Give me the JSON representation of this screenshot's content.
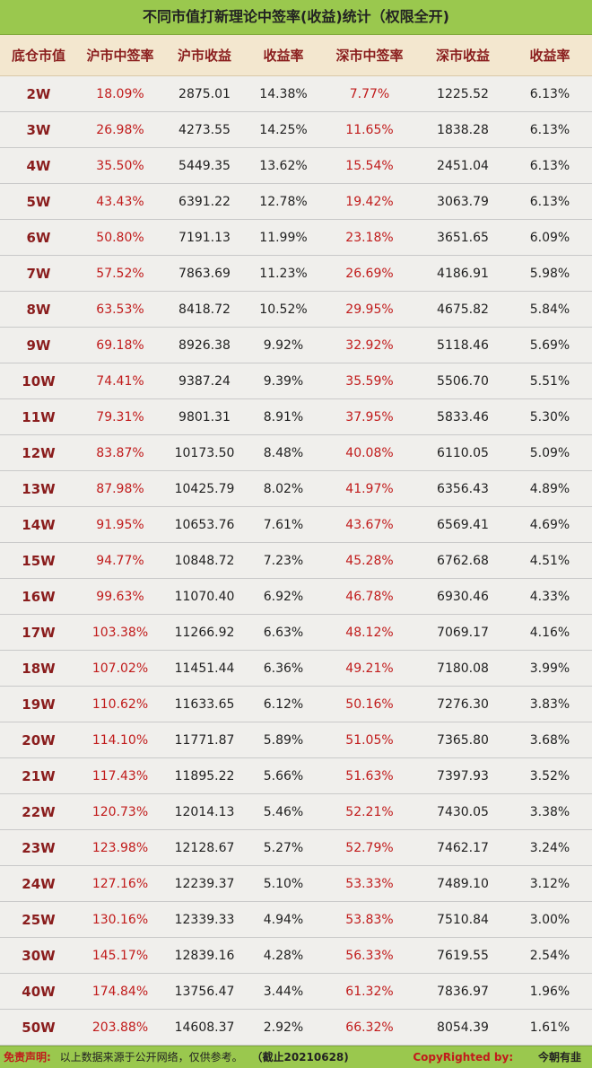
{
  "title": "不同市值打新理论中签率(收益)统计（权限全开)",
  "headers": [
    "底仓市值",
    "沪市中签率",
    "沪市收益",
    "收益率",
    "深市中签率",
    "深市收益",
    "收益率"
  ],
  "rows": [
    [
      "2W",
      "18.09%",
      "2875.01",
      "14.38%",
      "7.77%",
      "1225.52",
      "6.13%"
    ],
    [
      "3W",
      "26.98%",
      "4273.55",
      "14.25%",
      "11.65%",
      "1838.28",
      "6.13%"
    ],
    [
      "4W",
      "35.50%",
      "5449.35",
      "13.62%",
      "15.54%",
      "2451.04",
      "6.13%"
    ],
    [
      "5W",
      "43.43%",
      "6391.22",
      "12.78%",
      "19.42%",
      "3063.79",
      "6.13%"
    ],
    [
      "6W",
      "50.80%",
      "7191.13",
      "11.99%",
      "23.18%",
      "3651.65",
      "6.09%"
    ],
    [
      "7W",
      "57.52%",
      "7863.69",
      "11.23%",
      "26.69%",
      "4186.91",
      "5.98%"
    ],
    [
      "8W",
      "63.53%",
      "8418.72",
      "10.52%",
      "29.95%",
      "4675.82",
      "5.84%"
    ],
    [
      "9W",
      "69.18%",
      "8926.38",
      "9.92%",
      "32.92%",
      "5118.46",
      "5.69%"
    ],
    [
      "10W",
      "74.41%",
      "9387.24",
      "9.39%",
      "35.59%",
      "5506.70",
      "5.51%"
    ],
    [
      "11W",
      "79.31%",
      "9801.31",
      "8.91%",
      "37.95%",
      "5833.46",
      "5.30%"
    ],
    [
      "12W",
      "83.87%",
      "10173.50",
      "8.48%",
      "40.08%",
      "6110.05",
      "5.09%"
    ],
    [
      "13W",
      "87.98%",
      "10425.79",
      "8.02%",
      "41.97%",
      "6356.43",
      "4.89%"
    ],
    [
      "14W",
      "91.95%",
      "10653.76",
      "7.61%",
      "43.67%",
      "6569.41",
      "4.69%"
    ],
    [
      "15W",
      "94.77%",
      "10848.72",
      "7.23%",
      "45.28%",
      "6762.68",
      "4.51%"
    ],
    [
      "16W",
      "99.63%",
      "11070.40",
      "6.92%",
      "46.78%",
      "6930.46",
      "4.33%"
    ],
    [
      "17W",
      "103.38%",
      "11266.92",
      "6.63%",
      "48.12%",
      "7069.17",
      "4.16%"
    ],
    [
      "18W",
      "107.02%",
      "11451.44",
      "6.36%",
      "49.21%",
      "7180.08",
      "3.99%"
    ],
    [
      "19W",
      "110.62%",
      "11633.65",
      "6.12%",
      "50.16%",
      "7276.30",
      "3.83%"
    ],
    [
      "20W",
      "114.10%",
      "11771.87",
      "5.89%",
      "51.05%",
      "7365.80",
      "3.68%"
    ],
    [
      "21W",
      "117.43%",
      "11895.22",
      "5.66%",
      "51.63%",
      "7397.93",
      "3.52%"
    ],
    [
      "22W",
      "120.73%",
      "12014.13",
      "5.46%",
      "52.21%",
      "7430.05",
      "3.38%"
    ],
    [
      "23W",
      "123.98%",
      "12128.67",
      "5.27%",
      "52.79%",
      "7462.17",
      "3.24%"
    ],
    [
      "24W",
      "127.16%",
      "12239.37",
      "5.10%",
      "53.33%",
      "7489.10",
      "3.12%"
    ],
    [
      "25W",
      "130.16%",
      "12339.33",
      "4.94%",
      "53.83%",
      "7510.84",
      "3.00%"
    ],
    [
      "30W",
      "145.17%",
      "12839.16",
      "4.28%",
      "56.33%",
      "7619.55",
      "2.54%"
    ],
    [
      "40W",
      "174.84%",
      "13756.47",
      "3.44%",
      "61.32%",
      "7836.97",
      "1.96%"
    ],
    [
      "50W",
      "203.88%",
      "14608.37",
      "2.92%",
      "66.32%",
      "8054.39",
      "1.61%"
    ]
  ],
  "footer": {
    "disclaimer_label": "免责声明:",
    "disclaimer_text": "以上数据来源于公开网络，仅供参考。",
    "cutoff": "（截止20210628)",
    "copyright_label": "CopyRighted by:",
    "copyright_owner": "今朝有韭"
  },
  "colors": {
    "title_bg": "#9ac84e",
    "header_bg": "#f3e7cf",
    "header_text": "#8a1d1d",
    "rate_text": "#c11b1b",
    "body_bg": "#f0efec"
  }
}
